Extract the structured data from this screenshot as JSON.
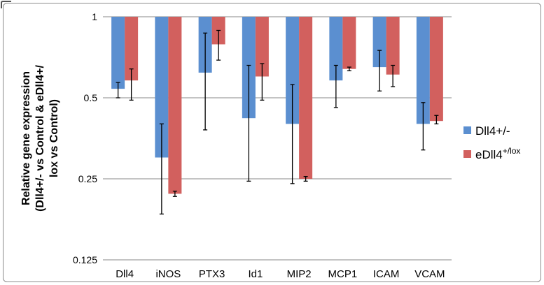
{
  "chart_data": {
    "type": "bar",
    "scale": "log2",
    "ylim": [
      0.125,
      1
    ],
    "yticks": [
      {
        "value": 1,
        "label": "1"
      },
      {
        "value": 0.5,
        "label": "0.5"
      },
      {
        "value": 0.25,
        "label": "0.25"
      },
      {
        "value": 0.125,
        "label": "0.125"
      }
    ],
    "grid": true,
    "categories": [
      "Dll4",
      "iNOS",
      "PTX3",
      "Id1",
      "MIP2",
      "MCP1",
      "ICAM",
      "VCAM"
    ],
    "ylabel_lines": [
      "Relative gene expression",
      "(Dll4+/- vs Control & eDll4+/",
      "lox vs Control)"
    ],
    "legend_position": "right",
    "series": [
      {
        "name": "Dll4+/-",
        "color": "#5b8fd0",
        "values": [
          0.54,
          0.3,
          0.62,
          0.42,
          0.4,
          0.58,
          0.65,
          0.4
        ],
        "err_low": [
          0.5,
          0.185,
          0.38,
          0.245,
          0.24,
          0.46,
          0.53,
          0.32
        ],
        "err_high": [
          0.57,
          0.4,
          0.87,
          0.66,
          0.56,
          0.66,
          0.75,
          0.48
        ]
      },
      {
        "name_base": "eDll4",
        "name_sup": "+/lox",
        "color": "#d2605e",
        "values": [
          0.58,
          0.22,
          0.79,
          0.6,
          0.25,
          0.64,
          0.61,
          0.41
        ],
        "err_low": [
          0.49,
          0.215,
          0.69,
          0.49,
          0.245,
          0.63,
          0.55,
          0.4
        ],
        "err_high": [
          0.64,
          0.225,
          0.89,
          0.67,
          0.255,
          0.65,
          0.66,
          0.43
        ]
      }
    ]
  }
}
